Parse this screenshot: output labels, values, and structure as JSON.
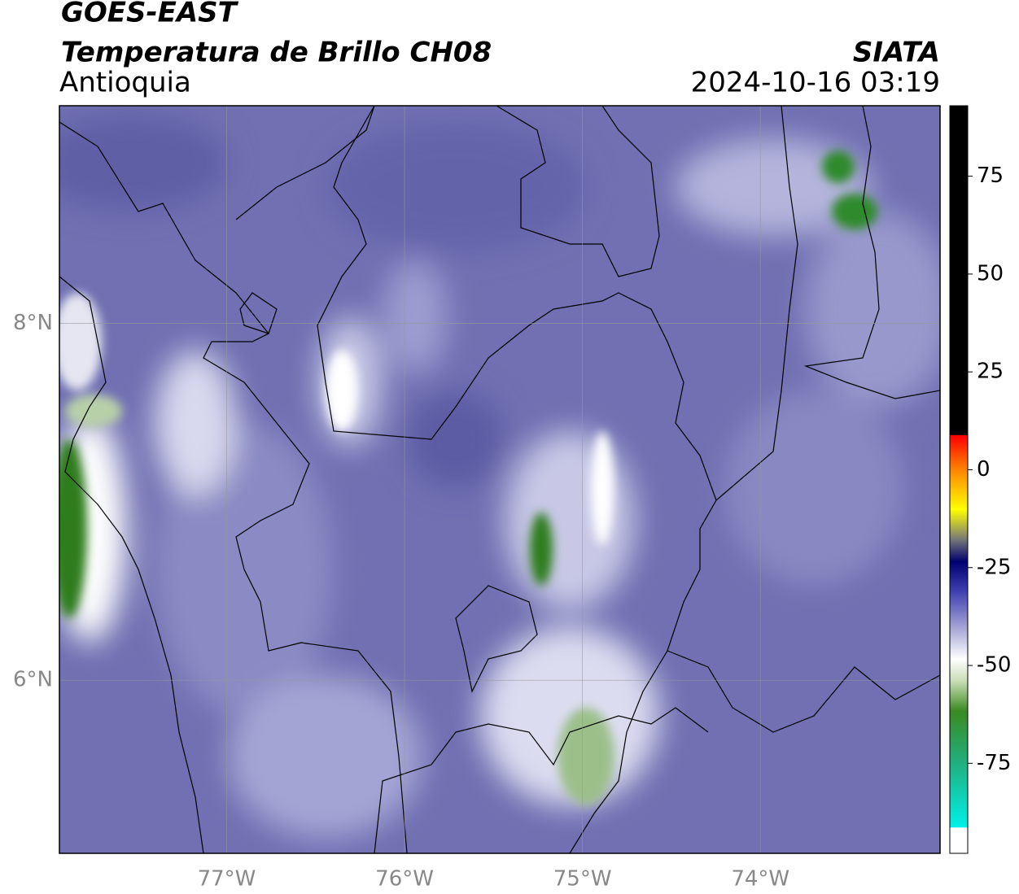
{
  "header": {
    "title": "GOES-EAST",
    "subtitle": "Temperatura de Brillo CH08",
    "region": "Antioquia",
    "source": "SIATA",
    "datetime": "2024-10-16 03:19"
  },
  "map": {
    "xlim": [
      -77.94,
      -72.99
    ],
    "ylim": [
      5.03,
      9.22
    ],
    "xticks": [
      {
        "value": -77,
        "label": "77°W"
      },
      {
        "value": -76,
        "label": "76°W"
      },
      {
        "value": -75,
        "label": "75°W"
      },
      {
        "value": -74,
        "label": "74°W"
      }
    ],
    "yticks": [
      {
        "value": 8,
        "label": "8°N"
      },
      {
        "value": 6,
        "label": "6°N"
      }
    ],
    "grid": true
  },
  "colorbar": {
    "lim": [
      -98,
      93
    ],
    "ticks": [
      75,
      50,
      25,
      0,
      -25,
      -50,
      -75
    ]
  }
}
